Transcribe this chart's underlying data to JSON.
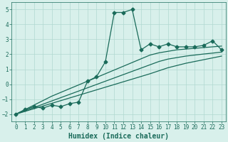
{
  "x": [
    0,
    1,
    2,
    3,
    4,
    5,
    6,
    7,
    8,
    9,
    10,
    11,
    12,
    13,
    14,
    15,
    16,
    17,
    18,
    19,
    20,
    21,
    22,
    23
  ],
  "y_main": [
    -2.0,
    -1.7,
    -1.5,
    -1.6,
    -1.4,
    -1.5,
    -1.3,
    -1.2,
    0.2,
    0.5,
    1.5,
    4.8,
    4.8,
    5.0,
    2.3,
    2.7,
    2.5,
    2.7,
    2.5,
    2.5,
    2.5,
    2.6,
    2.9,
    2.3
  ],
  "reg_line1": [
    -2.0,
    -1.7,
    -1.4,
    -1.1,
    -0.8,
    -0.55,
    -0.3,
    -0.05,
    0.2,
    0.45,
    0.7,
    0.95,
    1.2,
    1.45,
    1.7,
    1.95,
    2.1,
    2.2,
    2.3,
    2.35,
    2.4,
    2.45,
    2.5,
    2.55
  ],
  "reg_line2": [
    -2.0,
    -1.78,
    -1.56,
    -1.34,
    -1.12,
    -0.9,
    -0.68,
    -0.46,
    -0.24,
    -0.02,
    0.2,
    0.42,
    0.64,
    0.86,
    1.08,
    1.3,
    1.52,
    1.68,
    1.78,
    1.88,
    1.95,
    2.02,
    2.08,
    2.15
  ],
  "reg_line3": [
    -2.0,
    -1.82,
    -1.64,
    -1.46,
    -1.28,
    -1.1,
    -0.92,
    -0.74,
    -0.56,
    -0.38,
    -0.2,
    -0.02,
    0.16,
    0.34,
    0.52,
    0.7,
    0.9,
    1.1,
    1.25,
    1.4,
    1.52,
    1.64,
    1.76,
    1.88
  ],
  "xlim": [
    -0.5,
    23.5
  ],
  "ylim": [
    -2.5,
    5.5
  ],
  "yticks": [
    -2,
    -1,
    0,
    1,
    2,
    3,
    4,
    5
  ],
  "xticks": [
    0,
    1,
    2,
    3,
    4,
    5,
    6,
    7,
    8,
    9,
    10,
    11,
    12,
    13,
    14,
    15,
    16,
    17,
    18,
    19,
    20,
    21,
    22,
    23
  ],
  "xlabel": "Humidex (Indice chaleur)",
  "main_color": "#1a6b5a",
  "bg_color": "#d8f0eb",
  "grid_color": "#b0d8d0",
  "marker": "D",
  "markersize": 2.5,
  "linewidth": 0.9,
  "tick_fontsize": 5.5,
  "label_fontsize": 7
}
